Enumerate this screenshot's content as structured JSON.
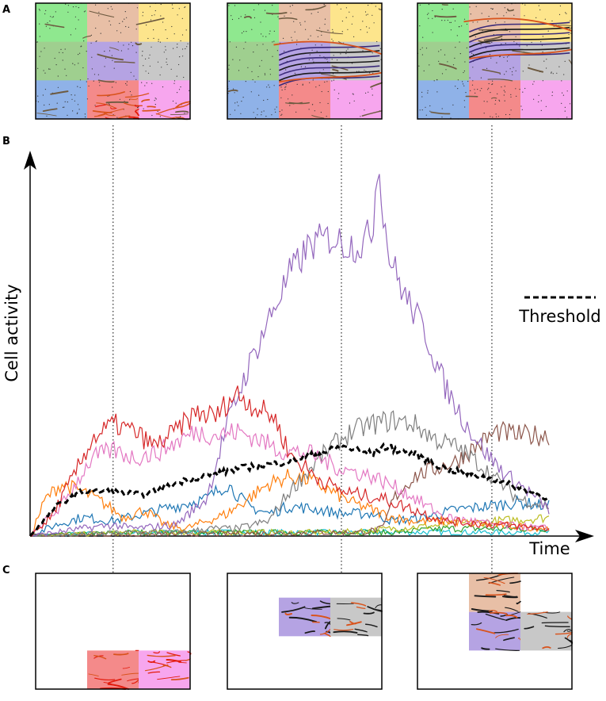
{
  "panels": {
    "a": "A",
    "b": "B",
    "c": "C"
  },
  "colors": {
    "grid": [
      "#8fe88f",
      "#e8bfa6",
      "#fde58c",
      "#9fcf8f",
      "#b5a3e3",
      "#c8c8c8",
      "#8fb2e8",
      "#f48a8a",
      "#f7a6ee"
    ],
    "edge_black": "#1a1a1a",
    "edge_orange": "#d9531c"
  },
  "chart_data": {
    "type": "line",
    "title": "",
    "xlabel": "Time",
    "ylabel": "Cell activity",
    "xlim": [
      0,
      100
    ],
    "ylim": [
      0,
      100
    ],
    "grid": false,
    "legend": {
      "position": "right",
      "entries": [
        {
          "label": "Threshold",
          "style": "dashed",
          "color": "#000000"
        }
      ]
    },
    "marker_times": [
      16,
      60,
      89
    ],
    "threshold": {
      "name": "Threshold",
      "color": "#000000",
      "x": [
        0,
        5,
        10,
        16,
        22,
        30,
        40,
        50,
        58,
        60,
        66,
        68,
        74,
        80,
        90,
        100
      ],
      "y": [
        0,
        8,
        12,
        12,
        11,
        15,
        18,
        20,
        23,
        24,
        22,
        24,
        22,
        18,
        15,
        10
      ]
    },
    "series": [
      {
        "name": "red",
        "color": "#d62728",
        "x": [
          0,
          4,
          8,
          12,
          16,
          20,
          24,
          28,
          32,
          36,
          38,
          40,
          44,
          47,
          50,
          55,
          60,
          64,
          68,
          74,
          80,
          90,
          100
        ],
        "y": [
          0,
          5,
          15,
          26,
          30,
          28,
          24,
          28,
          33,
          32,
          36,
          38,
          34,
          32,
          22,
          16,
          12,
          11,
          10,
          7,
          4,
          3,
          2
        ]
      },
      {
        "name": "pink",
        "color": "#e377c2",
        "x": [
          0,
          6,
          12,
          16,
          20,
          24,
          28,
          32,
          36,
          40,
          44,
          48,
          54,
          60,
          66,
          72,
          80,
          90,
          100
        ],
        "y": [
          0,
          8,
          21,
          23,
          21,
          22,
          25,
          28,
          27,
          28,
          26,
          23,
          22,
          18,
          16,
          12,
          5,
          3,
          2
        ]
      },
      {
        "name": "purple",
        "color": "#9467bd",
        "x": [
          0,
          10,
          16,
          20,
          28,
          34,
          38,
          42,
          46,
          50,
          54,
          58,
          61,
          64,
          66,
          67,
          69,
          72,
          76,
          80,
          84,
          88,
          92,
          96,
          100
        ],
        "y": [
          0,
          2,
          3,
          2,
          3,
          10,
          30,
          45,
          58,
          70,
          78,
          80,
          78,
          78,
          82,
          101,
          76,
          65,
          55,
          40,
          30,
          22,
          16,
          12,
          7
        ]
      },
      {
        "name": "gray",
        "color": "#7f7f7f",
        "x": [
          0,
          20,
          30,
          34,
          40,
          46,
          50,
          54,
          58,
          62,
          66,
          70,
          74,
          78,
          82,
          86,
          90,
          94,
          100
        ],
        "y": [
          0,
          1,
          1,
          2,
          2,
          4,
          12,
          18,
          24,
          28,
          30,
          31,
          30,
          26,
          24,
          20,
          15,
          10,
          8
        ]
      },
      {
        "name": "brown",
        "color": "#8c564b",
        "x": [
          0,
          60,
          64,
          68,
          70,
          74,
          78,
          82,
          86,
          90,
          94,
          100
        ],
        "y": [
          0,
          1,
          1,
          2,
          10,
          16,
          18,
          20,
          24,
          28,
          27,
          27
        ]
      },
      {
        "name": "orange",
        "color": "#ff7f0e",
        "x": [
          0,
          3,
          6,
          10,
          14,
          18,
          22,
          26,
          30,
          34,
          38,
          42,
          46,
          50,
          54,
          58,
          62,
          66,
          70,
          74,
          80,
          90,
          100
        ],
        "y": [
          0,
          10,
          14,
          12,
          9,
          5,
          7,
          3,
          2,
          4,
          6,
          10,
          14,
          16,
          15,
          12,
          9,
          7,
          5,
          4,
          4,
          3,
          2
        ]
      },
      {
        "name": "blue",
        "color": "#1f77b4",
        "x": [
          0,
          5,
          10,
          16,
          22,
          28,
          34,
          38,
          42,
          46,
          50,
          56,
          60,
          66,
          70,
          76,
          82,
          88,
          94,
          100
        ],
        "y": [
          0,
          3,
          5,
          4,
          6,
          8,
          10,
          14,
          8,
          6,
          8,
          7,
          6,
          6,
          4,
          5,
          7,
          8,
          9,
          8
        ]
      },
      {
        "name": "olive",
        "color": "#bcbd22",
        "x": [
          0,
          20,
          40,
          60,
          70,
          80,
          90,
          100
        ],
        "y": [
          0,
          1,
          1,
          1,
          2,
          3,
          4,
          5
        ]
      },
      {
        "name": "green",
        "color": "#2ca02c",
        "x": [
          0,
          20,
          40,
          60,
          70,
          80,
          90,
          100
        ],
        "y": [
          0,
          1,
          1,
          1,
          1,
          2,
          2,
          2
        ]
      },
      {
        "name": "cyan",
        "color": "#17becf",
        "x": [
          0,
          20,
          40,
          60,
          80,
          100
        ],
        "y": [
          0,
          1,
          1,
          1,
          1,
          1
        ]
      }
    ]
  }
}
